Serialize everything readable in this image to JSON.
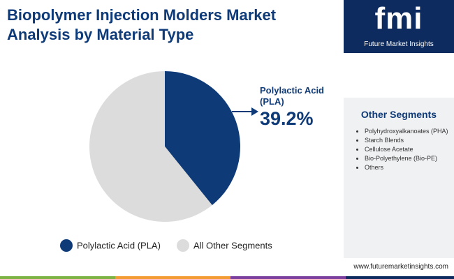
{
  "chart_data": {
    "type": "pie",
    "title": "Biopolymer Injection Molders Market Analysis by Material Type",
    "categories": [
      "Polylactic Acid (PLA)",
      "All Other Segments"
    ],
    "values": [
      39.2,
      60.8
    ],
    "value_labels": [
      "39.2%",
      null
    ],
    "colors": [
      "#0e3a78",
      "#dcdcdc"
    ],
    "legend": "bottom"
  },
  "brand": {
    "logo": "fmi",
    "name": "Future Market Insights",
    "url": "www.futuremarketinsights.com"
  },
  "sidebar": {
    "title": "Other Segments",
    "items": [
      "Polyhydroxyalkanoates (PHA)",
      "Starch Blends",
      "Cellulose Acetate",
      "Bio-Polyethylene (Bio-PE)",
      "Others"
    ]
  }
}
